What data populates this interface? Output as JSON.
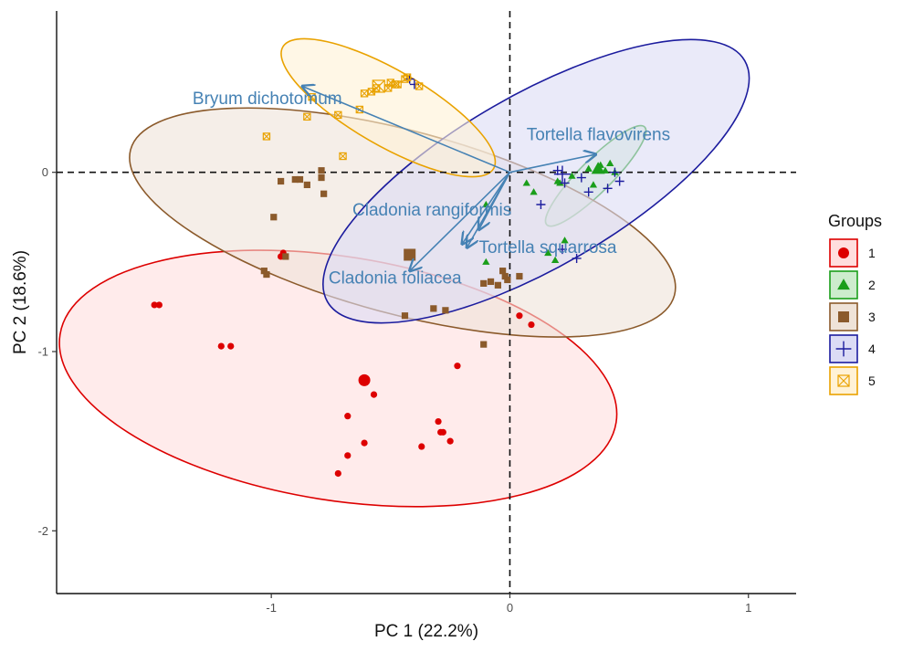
{
  "chart_data": {
    "type": "scatter",
    "xlabel": "PC 1 (22.2%)",
    "ylabel": "PC 2 (18.6%)",
    "xlim": [
      -1.9,
      1.2
    ],
    "ylim": [
      -2.35,
      0.9
    ],
    "x_ticks": [
      -1,
      0,
      1
    ],
    "y_ticks": [
      -2,
      -1,
      0
    ],
    "x_tick_labels": [
      "-1",
      "0",
      "1"
    ],
    "y_tick_labels": [
      "-2",
      "-1",
      "0"
    ],
    "grid": false,
    "reference_lines": {
      "x": 0,
      "y": 0,
      "style": "dashed"
    },
    "legend": {
      "title": "Groups",
      "position": "right"
    },
    "series": [
      {
        "name": "1",
        "color": "#dd0000",
        "fill": "#ffdede",
        "marker": "circle",
        "centroid": [
          -0.61,
          -1.16
        ],
        "ellipse": {
          "center": [
            -0.72,
            -1.15
          ],
          "semi_axes": [
            1.18,
            0.68
          ],
          "angle_deg": -9
        },
        "x": [
          -1.47,
          -1.49,
          -1.21,
          -1.17,
          -0.96,
          -0.95,
          -0.57,
          -0.68,
          -0.61,
          -0.68,
          -0.72,
          -0.6,
          -0.37,
          -0.3,
          -0.29,
          -0.25,
          -0.28,
          -0.22,
          0.04,
          0.09
        ],
        "y": [
          -0.74,
          -0.74,
          -0.97,
          -0.97,
          -0.47,
          -0.45,
          -1.24,
          -1.36,
          -1.51,
          -1.58,
          -1.68,
          -1.16,
          -1.53,
          -1.39,
          -1.45,
          -1.5,
          -1.45,
          -1.08,
          -0.8,
          -0.85
        ]
      },
      {
        "name": "2",
        "color": "#1a9e1a",
        "fill": "#cdeccd",
        "marker": "triangle",
        "centroid": [
          0.37,
          0.02
        ],
        "ellipse": {
          "center": [
            0.36,
            -0.02
          ],
          "semi_axes": [
            0.29,
            0.09
          ],
          "angle_deg": 45
        },
        "x": [
          -0.1,
          -0.1,
          0.07,
          0.1,
          0.16,
          0.19,
          0.2,
          0.21,
          0.23,
          0.26,
          0.33,
          0.35,
          0.38,
          0.4,
          0.42,
          0.44
        ],
        "y": [
          -0.18,
          -0.5,
          -0.06,
          -0.11,
          -0.45,
          -0.49,
          -0.05,
          -0.06,
          -0.38,
          -0.02,
          0.02,
          -0.07,
          0.04,
          0.01,
          0.05,
          0.0
        ]
      },
      {
        "name": "3",
        "color": "#8b5a2b",
        "fill": "#efe3d8",
        "marker": "square",
        "centroid": [
          -0.42,
          -0.46
        ],
        "ellipse": {
          "center": [
            -0.45,
            -0.28
          ],
          "semi_axes": [
            1.18,
            0.51
          ],
          "angle_deg": -15
        },
        "x": [
          -1.03,
          -1.02,
          -0.99,
          -0.96,
          -0.94,
          -0.9,
          -0.88,
          -0.85,
          -0.79,
          -0.79,
          -0.78,
          -0.44,
          -0.32,
          -0.27,
          -0.11,
          -0.08,
          -0.05,
          -0.03,
          -0.02,
          -0.01,
          0.04,
          -0.11
        ],
        "y": [
          -0.55,
          -0.57,
          -0.25,
          -0.05,
          -0.47,
          -0.04,
          -0.04,
          -0.07,
          -0.03,
          0.01,
          -0.12,
          -0.8,
          -0.76,
          -0.77,
          -0.62,
          -0.61,
          -0.63,
          -0.55,
          -0.58,
          -0.6,
          -0.58,
          -0.96
        ]
      },
      {
        "name": "4",
        "color": "#1c1c9e",
        "fill": "#dcdcf5",
        "marker": "plus",
        "centroid": [
          0.22,
          -0.01
        ],
        "ellipse": {
          "center": [
            0.11,
            -0.05
          ],
          "semi_axes": [
            1.01,
            0.48
          ],
          "angle_deg": 30
        },
        "x": [
          -0.42,
          -0.4,
          0.13,
          0.2,
          0.22,
          0.23,
          0.28,
          0.3,
          0.33,
          0.41,
          0.44,
          0.46
        ],
        "y": [
          0.52,
          0.49,
          -0.18,
          0.01,
          -0.43,
          -0.06,
          -0.48,
          -0.03,
          -0.11,
          -0.09,
          0.0,
          -0.05
        ]
      },
      {
        "name": "5",
        "color": "#e9a200",
        "fill": "#fff2d6",
        "marker": "square-x",
        "centroid": [
          -0.55,
          0.48
        ],
        "ellipse": {
          "center": [
            -0.51,
            0.36
          ],
          "semi_axes": [
            0.51,
            0.21
          ],
          "angle_deg": -30
        },
        "x": [
          -1.02,
          -0.85,
          -0.83,
          -0.72,
          -0.7,
          -0.63,
          -0.61,
          -0.58,
          -0.56,
          -0.51,
          -0.5,
          -0.48,
          -0.47,
          -0.44,
          -0.43,
          -0.38
        ],
        "y": [
          0.2,
          0.31,
          0.42,
          0.32,
          0.09,
          0.35,
          0.44,
          0.45,
          0.47,
          0.47,
          0.5,
          0.49,
          0.49,
          0.52,
          0.53,
          0.48
        ]
      }
    ],
    "loadings": [
      {
        "label": "Bryum dichotomum",
        "x": -0.87,
        "y": 0.48,
        "label_at": [
          -1.33,
          0.38
        ]
      },
      {
        "label": "Tortella flavovirens",
        "x": 0.36,
        "y": 0.1,
        "label_at": [
          0.07,
          0.18
        ]
      },
      {
        "label": "Cladonia rangiformis",
        "x": -0.18,
        "y": -0.42,
        "label_at": [
          -0.66,
          -0.24
        ]
      },
      {
        "label": "Tortella squarrosa",
        "x": -0.13,
        "y": -0.32,
        "label_at": [
          -0.13,
          -0.45
        ]
      },
      {
        "label": "Cladonia foliacea",
        "x": -0.42,
        "y": -0.55,
        "label_at": [
          -0.76,
          -0.62
        ]
      },
      {
        "label": "",
        "x": -0.2,
        "y": -0.4,
        "label_at": null
      }
    ]
  }
}
